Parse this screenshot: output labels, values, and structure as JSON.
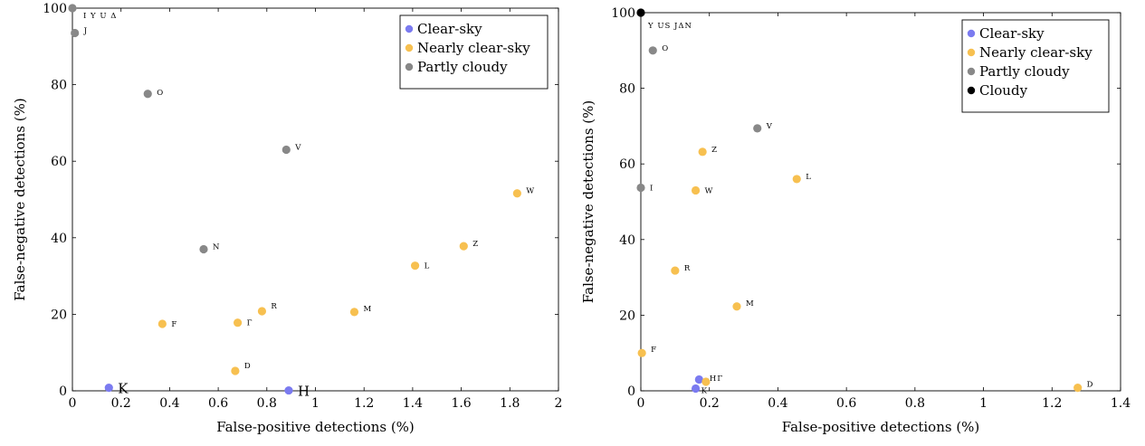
{
  "chart_data": [
    {
      "type": "scatter",
      "xlabel": "False-positive detections (%)",
      "ylabel": "False-negative detections (%)",
      "xlim": [
        0,
        2
      ],
      "ylim": [
        0,
        100
      ],
      "xticks": [
        0,
        0.2,
        0.4,
        0.6,
        0.8,
        1,
        1.2,
        1.4,
        1.6,
        1.8,
        2
      ],
      "xtick_labels": [
        "0",
        "0.2",
        "0.4",
        "0.6",
        "0.8",
        "1",
        "1.2",
        "1.4",
        "1.6",
        "1.8",
        "2"
      ],
      "yticks": [
        0,
        20,
        40,
        60,
        80,
        100
      ],
      "ytick_labels": [
        "0",
        "20",
        "40",
        "60",
        "80",
        "100"
      ],
      "legend_position": "top-right",
      "series": [
        {
          "name": "Clear-sky",
          "color": "#7b7bf0",
          "points": [
            {
              "x": 0.15,
              "y": 0.8,
              "label": "K",
              "large": true
            },
            {
              "x": 0.89,
              "y": 0.1,
              "label": "H",
              "large": true
            }
          ]
        },
        {
          "name": "Nearly clear-sky",
          "color": "#f7c050",
          "points": [
            {
              "x": 0.37,
              "y": 17.5,
              "label": "F"
            },
            {
              "x": 0.68,
              "y": 17.8,
              "label": "Γ"
            },
            {
              "x": 0.78,
              "y": 20.8,
              "label": "R",
              "label_dy": -6
            },
            {
              "x": 0.67,
              "y": 5.2,
              "label": "D",
              "label_dy": -6
            },
            {
              "x": 1.16,
              "y": 20.6,
              "label": "M",
              "label_dy": -4
            },
            {
              "x": 1.41,
              "y": 32.7,
              "label": "L"
            },
            {
              "x": 1.61,
              "y": 37.8,
              "label": "Z",
              "label_dy": -3
            },
            {
              "x": 1.83,
              "y": 51.6,
              "label": "W",
              "label_dy": -3
            }
          ]
        },
        {
          "name": "Partly cloudy",
          "color": "#888888",
          "points": [
            {
              "x": 0.0,
              "y": 100,
              "label": "I Y U Δ",
              "label_dx": 12,
              "label_dy": 8
            },
            {
              "x": 0.01,
              "y": 93.5,
              "label": "J",
              "label_dy": -3
            },
            {
              "x": 0.31,
              "y": 77.6,
              "label": "O",
              "label_dy": -2
            },
            {
              "x": 0.88,
              "y": 63.0,
              "label": "V",
              "label_dy": -3
            },
            {
              "x": 0.54,
              "y": 37.0,
              "label": "N",
              "label_dy": -3
            }
          ]
        }
      ]
    },
    {
      "type": "scatter",
      "xlabel": "False-positive detections (%)",
      "ylabel": "False-negative detections (%)",
      "xlim": [
        0,
        1.4
      ],
      "ylim": [
        0,
        100
      ],
      "xticks": [
        0,
        0.2,
        0.4,
        0.6,
        0.8,
        1,
        1.2,
        1.4
      ],
      "xtick_labels": [
        "0",
        "0.2",
        "0.4",
        "0.6",
        "0.8",
        "1",
        "1.2",
        "1.4"
      ],
      "yticks": [
        0,
        20,
        40,
        60,
        80,
        100
      ],
      "ytick_labels": [
        "0",
        "20",
        "40",
        "60",
        "80",
        "100"
      ],
      "legend_position": "top-right",
      "series": [
        {
          "name": "Clear-sky",
          "color": "#7b7bf0",
          "points": [
            {
              "x": 0.17,
              "y": 3.0,
              "label": ""
            },
            {
              "x": 0.16,
              "y": 0.6,
              "label": "K",
              "label_dx": 6,
              "label_dy": 2
            }
          ]
        },
        {
          "name": "Nearly clear-sky",
          "color": "#f7c050",
          "points": [
            {
              "x": 0.003,
              "y": 10.0,
              "label": "F",
              "label_dy": -4
            },
            {
              "x": 0.1,
              "y": 31.8,
              "label": "R",
              "label_dy": -3
            },
            {
              "x": 0.28,
              "y": 22.3,
              "label": "M",
              "label_dy": -4
            },
            {
              "x": 0.16,
              "y": 53.0,
              "label": "W"
            },
            {
              "x": 0.18,
              "y": 63.2,
              "label": "Z",
              "label_dy": -3
            },
            {
              "x": 0.455,
              "y": 56.0,
              "label": "L",
              "label_dy": -3
            },
            {
              "x": 0.19,
              "y": 2.4,
              "label": "HΓ",
              "label_dx": 4,
              "label_dy": -4
            },
            {
              "x": 1.275,
              "y": 0.8,
              "label": "D",
              "label_dy": -4
            }
          ]
        },
        {
          "name": "Partly cloudy",
          "color": "#888888",
          "points": [
            {
              "x": 0.035,
              "y": 90.0,
              "label": "O",
              "label_dy": -3
            },
            {
              "x": 0.34,
              "y": 69.4,
              "label": "V",
              "label_dy": -3
            },
            {
              "x": 0.0,
              "y": 53.7,
              "label": "I"
            }
          ]
        },
        {
          "name": "Cloudy",
          "color": "#000000",
          "points": [
            {
              "x": 0.0,
              "y": 100,
              "label": "Y US JΔN",
              "label_dx": 8,
              "label_dy": 14
            }
          ]
        }
      ]
    }
  ]
}
